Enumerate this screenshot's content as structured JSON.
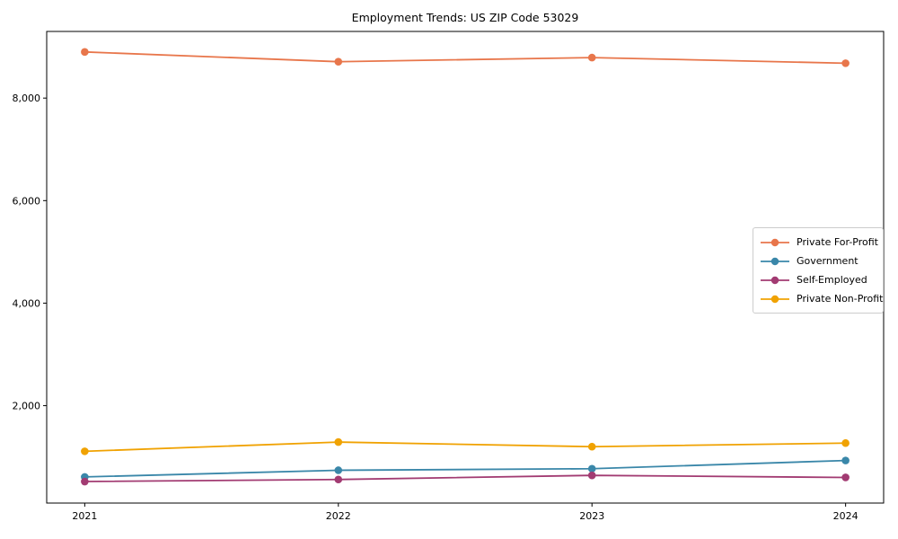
{
  "page": {
    "background_color": "#ffffff"
  },
  "chart_data": {
    "type": "line",
    "title": "Employment Trends: US ZIP Code 53029",
    "xlabel": "",
    "ylabel": "",
    "categories": [
      "2021",
      "2022",
      "2023",
      "2024"
    ],
    "series": [
      {
        "name": "Private For-Profit",
        "color": "#E8764B",
        "values": [
          8900,
          8710,
          8790,
          8680
        ]
      },
      {
        "name": "Government",
        "color": "#3A87A9",
        "values": [
          610,
          740,
          770,
          930
        ]
      },
      {
        "name": "Self-Employed",
        "color": "#A23B72",
        "values": [
          520,
          560,
          640,
          600
        ]
      },
      {
        "name": "Private Non-Profit",
        "color": "#F0A202",
        "values": [
          1110,
          1290,
          1200,
          1270
        ]
      }
    ],
    "yticks": [
      2000,
      4000,
      6000,
      8000
    ],
    "ytick_labels": [
      "2,000",
      "4,000",
      "6,000",
      "8,000"
    ],
    "ylim": [
      100,
      9300
    ],
    "grid": false,
    "marker": "circle",
    "legend_position": "center-right",
    "axis_color": "#000000"
  }
}
